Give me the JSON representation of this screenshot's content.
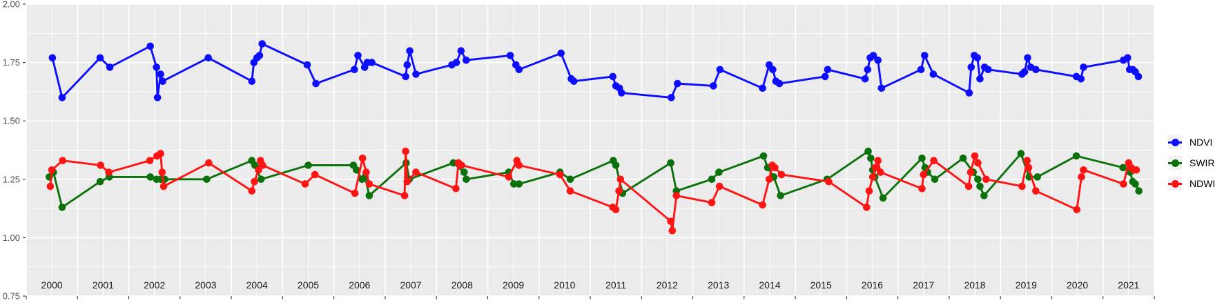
{
  "chart_data": {
    "type": "line",
    "title": "",
    "xlabel": "",
    "ylabel": "",
    "x_axis": {
      "range": [
        2000,
        2022
      ],
      "year_labels": [
        "2000",
        "2001",
        "2002",
        "2003",
        "2004",
        "2005",
        "2006",
        "2007",
        "2008",
        "2009",
        "2010",
        "2011",
        "2012",
        "2013",
        "2014",
        "2015",
        "2016",
        "2017",
        "2018",
        "2019",
        "2020",
        "2021"
      ]
    },
    "y_axis": {
      "range": [
        0.75,
        2.0
      ],
      "ticks": [
        {
          "label": "2.00",
          "value": 2.0
        },
        {
          "label": "1.75",
          "value": 1.75
        },
        {
          "label": "1.50",
          "value": 1.5
        },
        {
          "label": "1.25",
          "value": 1.25
        },
        {
          "label": "1.00",
          "value": 1.0
        },
        {
          "label": "0.75",
          "value": 0.75
        }
      ],
      "minor_values": [
        0.875,
        1.125,
        1.375,
        1.625,
        1.875
      ]
    },
    "grid": {
      "panel_bg": "#ebebeb",
      "major_color": "#ffffff",
      "minor_color": "#ffffff",
      "legend_key_bg": "#f2f2f2"
    },
    "legend": {
      "position": "right"
    },
    "series": [
      {
        "name": "NDVI",
        "color": "#0e0eff",
        "points": [
          [
            2000.51,
            1.77
          ],
          [
            2000.7,
            1.6
          ],
          [
            2001.44,
            1.77
          ],
          [
            2001.63,
            1.73
          ],
          [
            2002.42,
            1.82
          ],
          [
            2002.54,
            1.73
          ],
          [
            2002.56,
            1.6
          ],
          [
            2002.62,
            1.7
          ],
          [
            2002.66,
            1.67
          ],
          [
            2003.55,
            1.77
          ],
          [
            2004.4,
            1.67
          ],
          [
            2004.44,
            1.75
          ],
          [
            2004.5,
            1.77
          ],
          [
            2004.55,
            1.78
          ],
          [
            2004.6,
            1.83
          ],
          [
            2005.48,
            1.74
          ],
          [
            2005.65,
            1.66
          ],
          [
            2006.4,
            1.72
          ],
          [
            2006.47,
            1.78
          ],
          [
            2006.6,
            1.73
          ],
          [
            2006.65,
            1.75
          ],
          [
            2006.74,
            1.75
          ],
          [
            2007.4,
            1.69
          ],
          [
            2007.43,
            1.74
          ],
          [
            2007.48,
            1.8
          ],
          [
            2007.6,
            1.7
          ],
          [
            2008.3,
            1.74
          ],
          [
            2008.39,
            1.75
          ],
          [
            2008.48,
            1.8
          ],
          [
            2008.58,
            1.76
          ],
          [
            2009.44,
            1.78
          ],
          [
            2009.55,
            1.74
          ],
          [
            2009.61,
            1.72
          ],
          [
            2010.43,
            1.79
          ],
          [
            2010.63,
            1.68
          ],
          [
            2010.68,
            1.67
          ],
          [
            2011.44,
            1.69
          ],
          [
            2011.5,
            1.65
          ],
          [
            2011.57,
            1.64
          ],
          [
            2011.61,
            1.62
          ],
          [
            2012.58,
            1.6
          ],
          [
            2012.7,
            1.66
          ],
          [
            2013.4,
            1.65
          ],
          [
            2013.53,
            1.72
          ],
          [
            2014.36,
            1.64
          ],
          [
            2014.49,
            1.74
          ],
          [
            2014.56,
            1.72
          ],
          [
            2014.62,
            1.67
          ],
          [
            2014.69,
            1.66
          ],
          [
            2015.58,
            1.69
          ],
          [
            2015.63,
            1.72
          ],
          [
            2016.36,
            1.68
          ],
          [
            2016.41,
            1.72
          ],
          [
            2016.46,
            1.77
          ],
          [
            2016.52,
            1.78
          ],
          [
            2016.61,
            1.76
          ],
          [
            2016.68,
            1.64
          ],
          [
            2017.45,
            1.72
          ],
          [
            2017.52,
            1.78
          ],
          [
            2017.69,
            1.7
          ],
          [
            2018.39,
            1.62
          ],
          [
            2018.43,
            1.73
          ],
          [
            2018.49,
            1.78
          ],
          [
            2018.55,
            1.77
          ],
          [
            2018.6,
            1.68
          ],
          [
            2018.69,
            1.73
          ],
          [
            2018.76,
            1.72
          ],
          [
            2019.42,
            1.7
          ],
          [
            2019.47,
            1.71
          ],
          [
            2019.53,
            1.77
          ],
          [
            2019.59,
            1.73
          ],
          [
            2019.69,
            1.72
          ],
          [
            2020.48,
            1.69
          ],
          [
            2020.57,
            1.68
          ],
          [
            2020.62,
            1.73
          ],
          [
            2021.4,
            1.76
          ],
          [
            2021.48,
            1.77
          ],
          [
            2021.52,
            1.72
          ],
          [
            2021.58,
            1.72
          ],
          [
            2021.63,
            1.71
          ],
          [
            2021.69,
            1.69
          ]
        ]
      },
      {
        "name": "SWIR",
        "color": "#0b720b",
        "points": [
          [
            2000.45,
            1.26
          ],
          [
            2000.53,
            1.28
          ],
          [
            2000.7,
            1.13
          ],
          [
            2001.44,
            1.24
          ],
          [
            2001.62,
            1.26
          ],
          [
            2002.42,
            1.26
          ],
          [
            2002.54,
            1.25
          ],
          [
            2002.62,
            1.25
          ],
          [
            2002.7,
            1.25
          ],
          [
            2003.52,
            1.25
          ],
          [
            2004.4,
            1.33
          ],
          [
            2004.46,
            1.31
          ],
          [
            2004.58,
            1.25
          ],
          [
            2005.5,
            1.31
          ],
          [
            2006.38,
            1.31
          ],
          [
            2006.44,
            1.29
          ],
          [
            2006.55,
            1.25
          ],
          [
            2006.61,
            1.26
          ],
          [
            2006.69,
            1.18
          ],
          [
            2007.41,
            1.32
          ],
          [
            2007.47,
            1.25
          ],
          [
            2008.33,
            1.32
          ],
          [
            2008.54,
            1.28
          ],
          [
            2008.58,
            1.25
          ],
          [
            2009.41,
            1.28
          ],
          [
            2009.51,
            1.23
          ],
          [
            2009.61,
            1.23
          ],
          [
            2010.41,
            1.28
          ],
          [
            2010.61,
            1.25
          ],
          [
            2011.45,
            1.33
          ],
          [
            2011.5,
            1.31
          ],
          [
            2011.63,
            1.19
          ],
          [
            2012.57,
            1.32
          ],
          [
            2012.68,
            1.2
          ],
          [
            2013.37,
            1.25
          ],
          [
            2013.51,
            1.28
          ],
          [
            2014.38,
            1.35
          ],
          [
            2014.46,
            1.3
          ],
          [
            2014.58,
            1.26
          ],
          [
            2014.71,
            1.18
          ],
          [
            2015.62,
            1.25
          ],
          [
            2016.42,
            1.37
          ],
          [
            2016.47,
            1.34
          ],
          [
            2016.51,
            1.29
          ],
          [
            2016.55,
            1.26
          ],
          [
            2016.71,
            1.17
          ],
          [
            2017.47,
            1.34
          ],
          [
            2017.53,
            1.3
          ],
          [
            2017.58,
            1.28
          ],
          [
            2017.72,
            1.25
          ],
          [
            2018.27,
            1.34
          ],
          [
            2018.47,
            1.28
          ],
          [
            2018.56,
            1.25
          ],
          [
            2018.6,
            1.22
          ],
          [
            2018.68,
            1.18
          ],
          [
            2019.4,
            1.36
          ],
          [
            2019.56,
            1.26
          ],
          [
            2019.72,
            1.26
          ],
          [
            2020.48,
            1.35
          ],
          [
            2021.39,
            1.3
          ],
          [
            2021.53,
            1.28
          ],
          [
            2021.58,
            1.24
          ],
          [
            2021.63,
            1.23
          ],
          [
            2021.7,
            1.2
          ]
        ]
      },
      {
        "name": "NDWI",
        "color": "#ff1414",
        "points": [
          [
            2000.47,
            1.22
          ],
          [
            2000.5,
            1.29
          ],
          [
            2000.71,
            1.33
          ],
          [
            2001.45,
            1.31
          ],
          [
            2001.61,
            1.28
          ],
          [
            2002.41,
            1.33
          ],
          [
            2002.55,
            1.35
          ],
          [
            2002.62,
            1.36
          ],
          [
            2002.65,
            1.28
          ],
          [
            2002.68,
            1.22
          ],
          [
            2003.56,
            1.32
          ],
          [
            2004.4,
            1.2
          ],
          [
            2004.45,
            1.24
          ],
          [
            2004.53,
            1.29
          ],
          [
            2004.57,
            1.33
          ],
          [
            2004.61,
            1.31
          ],
          [
            2005.44,
            1.23
          ],
          [
            2005.63,
            1.27
          ],
          [
            2006.41,
            1.19
          ],
          [
            2006.56,
            1.34
          ],
          [
            2006.63,
            1.28
          ],
          [
            2006.69,
            1.23
          ],
          [
            2007.38,
            1.18
          ],
          [
            2007.4,
            1.37
          ],
          [
            2007.43,
            1.24
          ],
          [
            2007.6,
            1.28
          ],
          [
            2008.38,
            1.21
          ],
          [
            2008.43,
            1.32
          ],
          [
            2008.49,
            1.31
          ],
          [
            2009.41,
            1.26
          ],
          [
            2009.57,
            1.33
          ],
          [
            2009.61,
            1.31
          ],
          [
            2010.41,
            1.27
          ],
          [
            2010.61,
            1.2
          ],
          [
            2011.44,
            1.13
          ],
          [
            2011.5,
            1.12
          ],
          [
            2011.56,
            1.2
          ],
          [
            2011.59,
            1.25
          ],
          [
            2012.57,
            1.07
          ],
          [
            2012.6,
            1.03
          ],
          [
            2012.68,
            1.18
          ],
          [
            2013.37,
            1.15
          ],
          [
            2013.52,
            1.22
          ],
          [
            2014.36,
            1.14
          ],
          [
            2014.49,
            1.25
          ],
          [
            2014.55,
            1.31
          ],
          [
            2014.6,
            1.3
          ],
          [
            2014.73,
            1.27
          ],
          [
            2015.65,
            1.24
          ],
          [
            2016.39,
            1.13
          ],
          [
            2016.44,
            1.2
          ],
          [
            2016.51,
            1.26
          ],
          [
            2016.56,
            1.3
          ],
          [
            2016.61,
            1.33
          ],
          [
            2016.66,
            1.28
          ],
          [
            2017.47,
            1.21
          ],
          [
            2017.5,
            1.27
          ],
          [
            2017.7,
            1.33
          ],
          [
            2018.38,
            1.22
          ],
          [
            2018.42,
            1.28
          ],
          [
            2018.5,
            1.35
          ],
          [
            2018.56,
            1.32
          ],
          [
            2018.72,
            1.25
          ],
          [
            2019.42,
            1.22
          ],
          [
            2019.52,
            1.33
          ],
          [
            2019.55,
            1.3
          ],
          [
            2019.69,
            1.2
          ],
          [
            2020.49,
            1.12
          ],
          [
            2020.58,
            1.26
          ],
          [
            2020.62,
            1.29
          ],
          [
            2021.4,
            1.23
          ],
          [
            2021.5,
            1.32
          ],
          [
            2021.55,
            1.3
          ],
          [
            2021.6,
            1.29
          ],
          [
            2021.65,
            1.29
          ]
        ]
      }
    ]
  }
}
